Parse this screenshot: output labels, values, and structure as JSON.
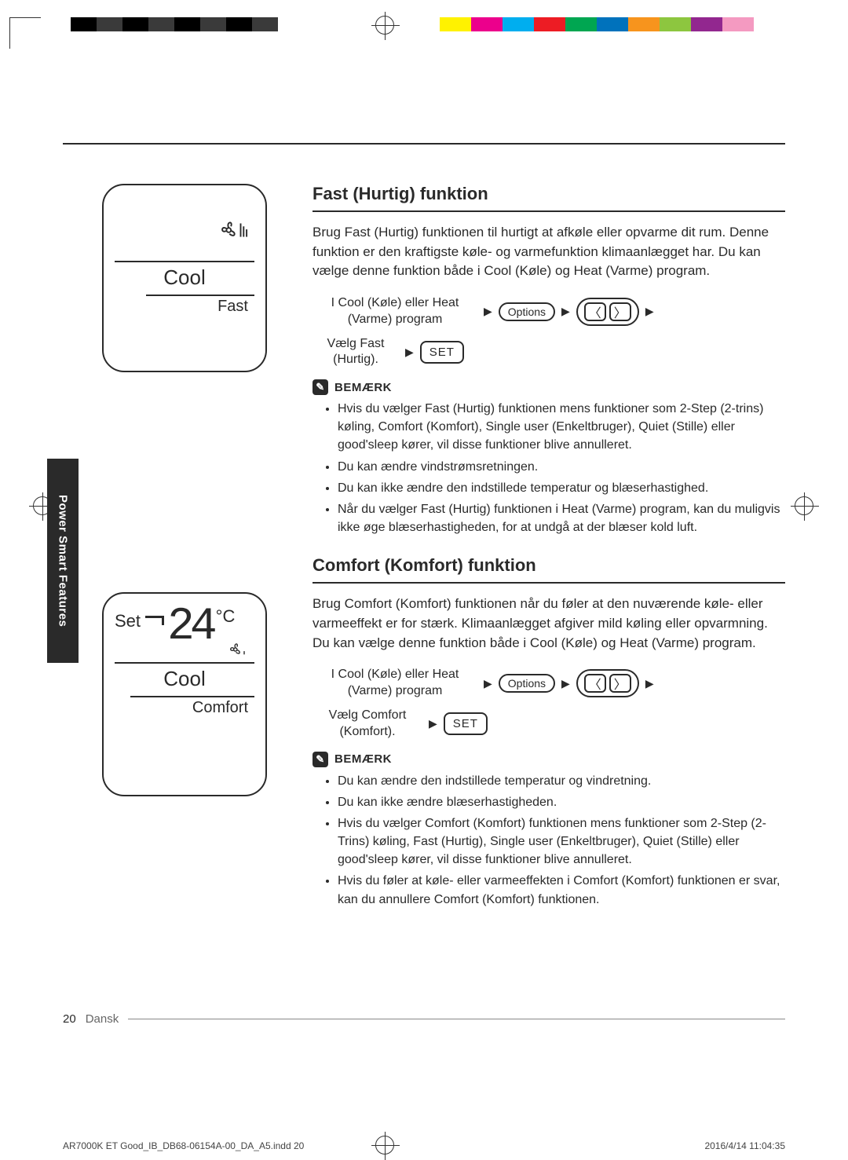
{
  "colorbar_left": [
    "#000000",
    "#3a3a3a",
    "#000000",
    "#3a3a3a",
    "#000000",
    "#3a3a3a",
    "#000000",
    "#3a3a3a",
    "#ffffff",
    "#ffffff"
  ],
  "colorbar_right": [
    "#fff200",
    "#ec008c",
    "#00aeef",
    "#ed1c24",
    "#00a651",
    "#0072bc",
    "#f7941d",
    "#8dc63f",
    "#92278f",
    "#f49ac1"
  ],
  "side_tab": "Power Smart Features",
  "display1": {
    "mode": "Cool",
    "sub": "Fast"
  },
  "display2": {
    "set_label": "Set",
    "temp": "24",
    "unit": "°C",
    "mode": "Cool",
    "sub": "Comfort"
  },
  "section1": {
    "title": "Fast (Hurtig) funktion",
    "para": "Brug Fast (Hurtig) funktionen til hurtigt at afkøle eller opvarme dit rum. Denne funktion er den kraftigste køle- og varmefunktion klimaanlægget har. Du kan vælge denne funktion både i Cool (Køle) og Heat (Varme) program.",
    "step1": "I Cool (Køle) eller Heat (Varme) program",
    "options_label": "Options",
    "step2": "Vælg Fast (Hurtig).",
    "set_label": "SET",
    "note_label": "BEMÆRK",
    "notes": [
      "Hvis du vælger Fast (Hurtig) funktionen mens funktioner som 2-Step (2-trins) køling, Comfort (Komfort), Single user (Enkeltbruger), Quiet (Stille) eller good'sleep kører, vil disse funktioner blive annulleret.",
      "Du kan ændre vindstrømsretningen.",
      "Du kan ikke ændre den indstillede temperatur og blæserhastighed.",
      "Når du vælger Fast (Hurtig) funktionen i Heat (Varme) program, kan du muligvis ikke øge blæserhastigheden, for at undgå at der blæser kold luft."
    ]
  },
  "section2": {
    "title": "Comfort (Komfort) funktion",
    "para": "Brug Comfort (Komfort) funktionen når du føler at den nuværende køle- eller varmeeffekt er for stærk. Klimaanlægget afgiver mild køling eller opvarmning. Du kan vælge denne funktion både i Cool (Køle) og Heat (Varme) program.",
    "step1": "I Cool (Køle) eller Heat (Varme) program",
    "options_label": "Options",
    "step2": "Vælg Comfort (Komfort).",
    "set_label": "SET",
    "note_label": "BEMÆRK",
    "notes": [
      "Du kan ændre den indstillede temperatur og vindretning.",
      "Du kan ikke ændre blæserhastigheden.",
      "Hvis du vælger Comfort (Komfort) funktionen mens funktioner som 2-Step (2-Trins) køling, Fast (Hurtig), Single user (Enkeltbruger), Quiet (Stille) eller good'sleep kører, vil disse funktioner blive annulleret.",
      "Hvis du føler at køle- eller varmeeffekten i Comfort (Komfort) funktionen er svar, kan du annullere Comfort (Komfort) funktionen."
    ]
  },
  "footer": {
    "page_num": "20",
    "lang": "Dansk",
    "print_file": "AR7000K ET Good_IB_DB68-06154A-00_DA_A5.indd   20",
    "print_date": "2016/4/14   11:04:35"
  }
}
